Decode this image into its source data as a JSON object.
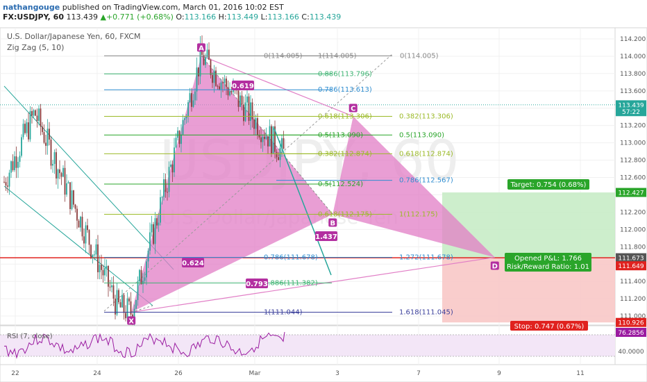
{
  "header": {
    "author": "nathangouge",
    "published": "published on TradingView.com, March 01, 2016 10:02 EST",
    "symbol": "FX:USDJPY, 60",
    "last": "113.439",
    "change": "+0.771 (+0.68%)",
    "ohlc": [
      {
        "k": "O:",
        "v": "113.166"
      },
      {
        "k": "H:",
        "v": "113.449"
      },
      {
        "k": "L:",
        "v": "113.166"
      },
      {
        "k": "C:",
        "v": "113.439"
      }
    ]
  },
  "legend": {
    "title": "U.S. Dollar/Japanese Yen, 60, FXCM",
    "indicator": "Zig Zag (5, 10)",
    "rsi": "RSI (7, close)"
  },
  "watermark": {
    "big": "USDJPY, 60",
    "small": "U.S. Dollar/Japanese Yen"
  },
  "colors": {
    "pattern": "#e17ec6",
    "pattern_label": "#b32fa0",
    "up": "#26a69a",
    "down": "#8b3a3a",
    "channel": "#26a69a",
    "entry": "#e0221f",
    "target_zone": "#c8ecc6",
    "stop_zone": "#f8c8c6",
    "rsi_fill": "#f3e6f7",
    "rsi_line": "#9a1ba0"
  },
  "pattern_points": [
    {
      "label": "X",
      "x": "2016-02-24 20:00",
      "y": 111.044
    },
    {
      "label": "A",
      "x": "2016-02-26 13:00",
      "y": 114.005
    },
    {
      "label": "B",
      "x": "2016-02-29 18:00",
      "y": 112.175
    },
    {
      "label": "C",
      "x": "2016-03-01 06:00",
      "y": 113.306
    },
    {
      "label": "D",
      "x": "2016-03-04 17:00",
      "y": 111.678
    }
  ],
  "ratio_labels": [
    "0.619",
    "0.624",
    "1.437",
    "0.793"
  ],
  "fib_levels": [
    {
      "left": "0(114.005)",
      "mid": "1(114.005)",
      "right": "0(114.005)",
      "y": 114.005,
      "color": "#888888"
    },
    {
      "mid": "0.886(113.796)",
      "y": 113.796,
      "color": "#3cb371"
    },
    {
      "mid": "0.786(113.613)",
      "y": 113.613,
      "color": "#2f8dd0"
    },
    {
      "mid": "0.618(113.306)",
      "right": "0.382(113.306)",
      "y": 113.306,
      "color": "#9bba27"
    },
    {
      "mid": "0.5(113.090)",
      "right": "0.5(113.090)",
      "y": 113.09,
      "color": "#2aa52a"
    },
    {
      "mid": "0.382(112.874)",
      "right": "0.618(112.874)",
      "y": 112.874,
      "color": "#9bba27"
    },
    {
      "mid": "0.5(112.524)",
      "y": 112.524,
      "color": "#2aa52a"
    },
    {
      "right": "0.786(112.567)",
      "y": 112.567,
      "color": "#2f8dd0"
    },
    {
      "mid": "0.618(112.175)",
      "right": "1(112.175)",
      "y": 112.175,
      "color": "#9bba27"
    },
    {
      "mid": "0.786(111.678)",
      "right": "1.272(111.678)",
      "y": 111.678,
      "color": "#2f8dd0"
    },
    {
      "mid": "0.886(111.382)",
      "y": 111.382,
      "color": "#3cb371"
    },
    {
      "mid": "1(111.044)",
      "right": "1.618(111.045)",
      "y": 111.044,
      "color": "#3a3f9a"
    }
  ],
  "position": {
    "target_label": "Target: 0.754 (0.68%)",
    "pnl_label": "Opened P&L: 1.766",
    "rr_label": "Risk/Reward Ratio: 1.01",
    "stop_label": "Stop: 0.747 (0.67%)",
    "entry": 111.673,
    "target": 112.427,
    "stop": 110.926
  },
  "price_axis": {
    "ticks": [
      "114.200",
      "114.000",
      "113.800",
      "113.600",
      "113.400",
      "113.200",
      "113.000",
      "112.800",
      "112.600",
      "112.400",
      "112.200",
      "112.000",
      "111.800",
      "111.600",
      "111.400",
      "111.200",
      "111.000"
    ],
    "labels": [
      {
        "text": "113.439",
        "value": 113.439,
        "color": "#26a69a"
      },
      {
        "text": "57:22",
        "value": 113.36,
        "color": "#26a69a"
      },
      {
        "text": "112.427",
        "value": 112.427,
        "color": "#2aa52a"
      },
      {
        "text": "111.673",
        "value": 111.673,
        "color": "#555555"
      },
      {
        "text": "111.649",
        "value": 111.58,
        "color": "#e0221f"
      },
      {
        "text": "110.926",
        "value": 110.926,
        "color": "#e0221f"
      }
    ]
  },
  "rsi_axis": {
    "ticks": [
      "40.0000"
    ],
    "current": "76.2856"
  },
  "time_axis": [
    "22",
    "24",
    "26",
    "Mar",
    "3",
    "7",
    "9",
    "11"
  ]
}
